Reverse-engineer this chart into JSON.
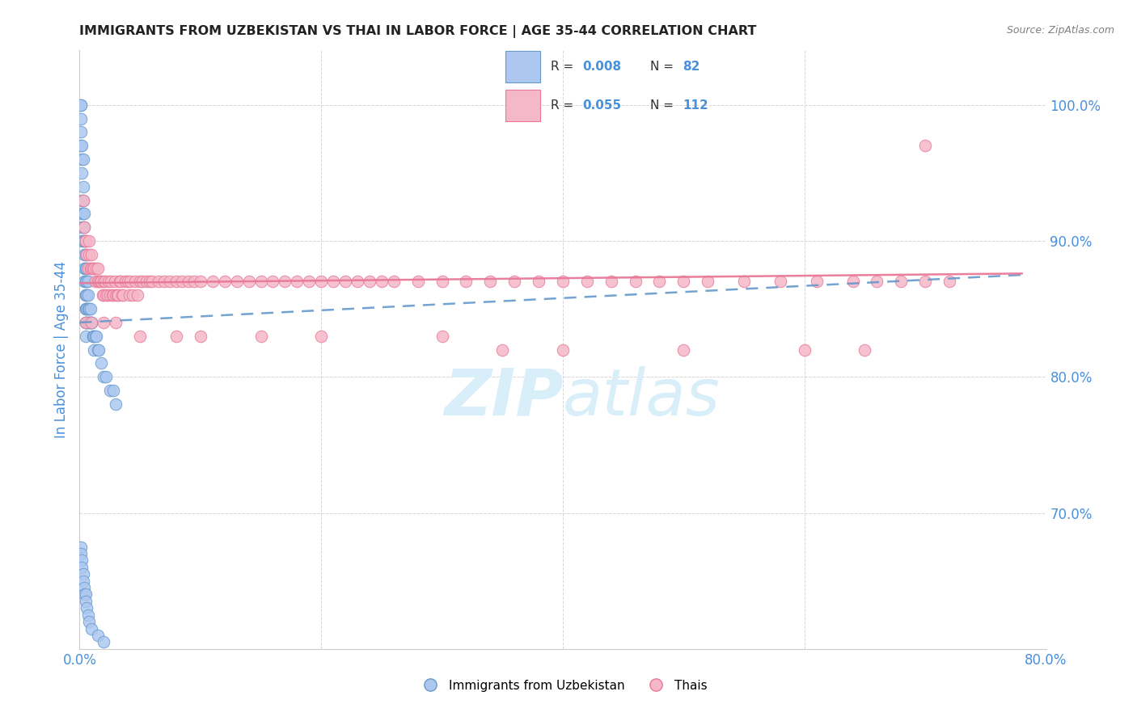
{
  "title": "IMMIGRANTS FROM UZBEKISTAN VS THAI IN LABOR FORCE | AGE 35-44 CORRELATION CHART",
  "source": "Source: ZipAtlas.com",
  "ylabel": "In Labor Force | Age 35-44",
  "xlim": [
    0.0,
    0.8
  ],
  "ylim": [
    0.6,
    1.04
  ],
  "xticks": [
    0.0,
    0.2,
    0.4,
    0.6,
    0.8
  ],
  "xticklabels": [
    "0.0%",
    "",
    "",
    "",
    "80.0%"
  ],
  "yticks": [
    0.7,
    0.8,
    0.9,
    1.0
  ],
  "yticklabels": [
    "70.0%",
    "80.0%",
    "90.0%",
    "100.0%"
  ],
  "color_uzbek_face": "#adc8f0",
  "color_uzbek_edge": "#6699cc",
  "color_thai_face": "#f5b8c8",
  "color_thai_edge": "#e87898",
  "color_uzbek_line": "#6699cc",
  "color_thai_line": "#e87898",
  "uzbek_N": 82,
  "thai_N": 112,
  "background_color": "#ffffff",
  "grid_color": "#cccccc",
  "title_color": "#222222",
  "tick_color": "#4a90d9",
  "watermark_color": "#d8eef8",
  "uzbek_x": [
    0.001,
    0.001,
    0.001,
    0.001,
    0.001,
    0.002,
    0.002,
    0.002,
    0.002,
    0.002,
    0.002,
    0.002,
    0.003,
    0.003,
    0.003,
    0.003,
    0.003,
    0.003,
    0.004,
    0.004,
    0.004,
    0.004,
    0.004,
    0.004,
    0.005,
    0.005,
    0.005,
    0.005,
    0.005,
    0.005,
    0.005,
    0.005,
    0.005,
    0.005,
    0.005,
    0.006,
    0.006,
    0.006,
    0.006,
    0.006,
    0.007,
    0.007,
    0.007,
    0.007,
    0.008,
    0.008,
    0.008,
    0.009,
    0.009,
    0.009,
    0.01,
    0.01,
    0.011,
    0.011,
    0.012,
    0.012,
    0.013,
    0.014,
    0.015,
    0.016,
    0.018,
    0.02,
    0.022,
    0.025,
    0.028,
    0.03,
    0.001,
    0.001,
    0.002,
    0.002,
    0.003,
    0.003,
    0.004,
    0.004,
    0.005,
    0.005,
    0.006,
    0.007,
    0.008,
    0.01,
    0.015,
    0.02
  ],
  "uzbek_y": [
    1.0,
    1.0,
    0.99,
    0.98,
    0.97,
    0.97,
    0.96,
    0.95,
    0.93,
    0.92,
    0.91,
    0.9,
    0.96,
    0.94,
    0.93,
    0.92,
    0.91,
    0.9,
    0.92,
    0.91,
    0.9,
    0.89,
    0.88,
    0.87,
    0.9,
    0.89,
    0.88,
    0.87,
    0.86,
    0.86,
    0.85,
    0.85,
    0.84,
    0.84,
    0.83,
    0.88,
    0.87,
    0.86,
    0.85,
    0.84,
    0.87,
    0.86,
    0.85,
    0.84,
    0.85,
    0.85,
    0.84,
    0.85,
    0.84,
    0.84,
    0.84,
    0.84,
    0.83,
    0.83,
    0.83,
    0.82,
    0.83,
    0.83,
    0.82,
    0.82,
    0.81,
    0.8,
    0.8,
    0.79,
    0.79,
    0.78,
    0.675,
    0.67,
    0.665,
    0.66,
    0.655,
    0.65,
    0.645,
    0.64,
    0.64,
    0.635,
    0.63,
    0.625,
    0.62,
    0.615,
    0.61,
    0.605
  ],
  "thai_x": [
    0.003,
    0.004,
    0.005,
    0.005,
    0.006,
    0.007,
    0.008,
    0.008,
    0.009,
    0.01,
    0.01,
    0.011,
    0.012,
    0.013,
    0.014,
    0.015,
    0.015,
    0.016,
    0.017,
    0.018,
    0.019,
    0.02,
    0.02,
    0.021,
    0.022,
    0.023,
    0.024,
    0.025,
    0.026,
    0.027,
    0.028,
    0.029,
    0.03,
    0.031,
    0.032,
    0.033,
    0.034,
    0.035,
    0.036,
    0.038,
    0.04,
    0.041,
    0.042,
    0.044,
    0.046,
    0.048,
    0.05,
    0.052,
    0.055,
    0.058,
    0.06,
    0.065,
    0.07,
    0.075,
    0.08,
    0.085,
    0.09,
    0.095,
    0.1,
    0.11,
    0.12,
    0.13,
    0.14,
    0.15,
    0.16,
    0.17,
    0.18,
    0.19,
    0.2,
    0.21,
    0.22,
    0.23,
    0.24,
    0.25,
    0.26,
    0.28,
    0.3,
    0.32,
    0.34,
    0.36,
    0.38,
    0.4,
    0.42,
    0.44,
    0.46,
    0.48,
    0.5,
    0.52,
    0.55,
    0.58,
    0.61,
    0.64,
    0.66,
    0.68,
    0.7,
    0.72,
    0.005,
    0.01,
    0.02,
    0.03,
    0.05,
    0.08,
    0.1,
    0.15,
    0.2,
    0.3,
    0.35,
    0.4,
    0.5,
    0.6,
    0.65,
    0.7
  ],
  "thai_y": [
    0.93,
    0.91,
    0.9,
    0.9,
    0.89,
    0.88,
    0.9,
    0.89,
    0.88,
    0.89,
    0.88,
    0.88,
    0.88,
    0.87,
    0.88,
    0.88,
    0.87,
    0.87,
    0.87,
    0.87,
    0.86,
    0.87,
    0.86,
    0.87,
    0.86,
    0.86,
    0.87,
    0.86,
    0.87,
    0.86,
    0.86,
    0.87,
    0.86,
    0.86,
    0.86,
    0.87,
    0.87,
    0.86,
    0.86,
    0.87,
    0.87,
    0.86,
    0.87,
    0.86,
    0.87,
    0.86,
    0.87,
    0.87,
    0.87,
    0.87,
    0.87,
    0.87,
    0.87,
    0.87,
    0.87,
    0.87,
    0.87,
    0.87,
    0.87,
    0.87,
    0.87,
    0.87,
    0.87,
    0.87,
    0.87,
    0.87,
    0.87,
    0.87,
    0.87,
    0.87,
    0.87,
    0.87,
    0.87,
    0.87,
    0.87,
    0.87,
    0.87,
    0.87,
    0.87,
    0.87,
    0.87,
    0.87,
    0.87,
    0.87,
    0.87,
    0.87,
    0.87,
    0.87,
    0.87,
    0.87,
    0.87,
    0.87,
    0.87,
    0.87,
    0.87,
    0.87,
    0.84,
    0.84,
    0.84,
    0.84,
    0.83,
    0.83,
    0.83,
    0.83,
    0.83,
    0.83,
    0.82,
    0.82,
    0.82,
    0.82,
    0.82,
    0.97
  ]
}
